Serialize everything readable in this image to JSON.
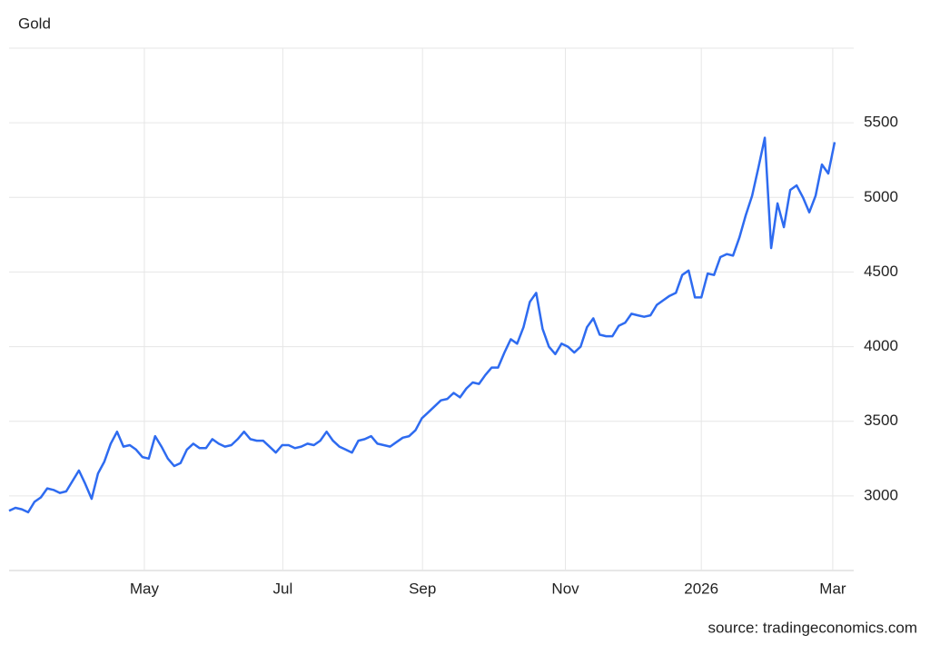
{
  "chart_data": {
    "type": "line",
    "title": "Gold",
    "source": "source: tradingeconomics.com",
    "series": [
      {
        "name": "Gold",
        "color": "#2e6bf0",
        "values": [
          2900,
          2920,
          2910,
          2890,
          2960,
          2990,
          3050,
          3040,
          3020,
          3030,
          3100,
          3170,
          3080,
          2980,
          3150,
          3230,
          3350,
          3430,
          3330,
          3340,
          3310,
          3260,
          3250,
          3400,
          3330,
          3250,
          3200,
          3220,
          3310,
          3350,
          3320,
          3320,
          3380,
          3350,
          3330,
          3340,
          3380,
          3430,
          3380,
          3370,
          3370,
          3330,
          3290,
          3340,
          3340,
          3320,
          3330,
          3350,
          3340,
          3370,
          3430,
          3370,
          3330,
          3310,
          3290,
          3370,
          3380,
          3400,
          3350,
          3340,
          3330,
          3360,
          3390,
          3400,
          3440,
          3520,
          3560,
          3600,
          3640,
          3650,
          3690,
          3660,
          3720,
          3760,
          3750,
          3810,
          3860,
          3860,
          3960,
          4050,
          4020,
          4130,
          4300,
          4360,
          4120,
          4000,
          3950,
          4020,
          4000,
          3960,
          4000,
          4130,
          4190,
          4080,
          4070,
          4070,
          4140,
          4160,
          4220,
          4210,
          4200,
          4210,
          4280,
          4310,
          4340,
          4360,
          4480,
          4510,
          4330,
          4330,
          4490,
          4480,
          4600,
          4620,
          4610,
          4730,
          4880,
          5010,
          5200,
          5400,
          4660,
          4960,
          4800,
          5050,
          5080,
          5000,
          4900,
          5010,
          5220,
          5160,
          5370
        ]
      }
    ],
    "xlim": [
      0,
      133
    ],
    "xticks": [
      {
        "value": 21.3,
        "label": "May"
      },
      {
        "value": 43.1,
        "label": "Jul"
      },
      {
        "value": 65.1,
        "label": "Sep"
      },
      {
        "value": 87.6,
        "label": "Nov"
      },
      {
        "value": 109,
        "label": "2026"
      },
      {
        "value": 129.7,
        "label": "Mar"
      }
    ],
    "ylim": [
      2500,
      6000
    ],
    "yticks": [
      3000,
      3500,
      4000,
      4500,
      5000,
      5500
    ],
    "grid": true
  }
}
